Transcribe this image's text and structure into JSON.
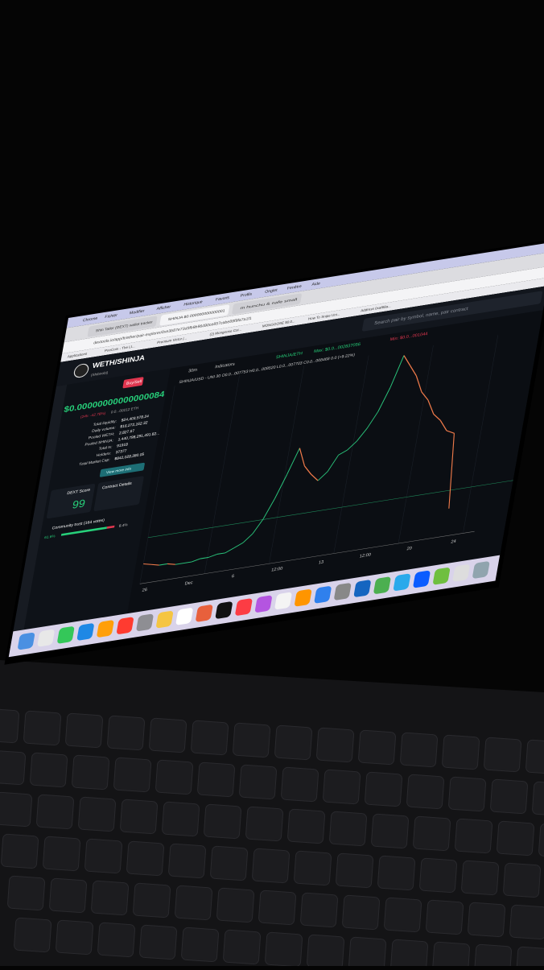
{
  "browser": {
    "menu": [
      "Chrome",
      "Fichier",
      "Modifier",
      "Afficher",
      "Historique",
      "Favoris",
      "Profils",
      "Onglet",
      "Fenêtre",
      "Aide"
    ],
    "tabs": [
      "Shin Tailer (DEXT) wallet tracker",
      "SHINJA $0.000000000000001",
      "m hunchu & nafe small"
    ],
    "address": "dextools.io/app/fr/ether/pair-explorer/0xe3b87e73d3fb9b96d90ce857cabe89f9fa7a1f1",
    "bookmarks": [
      "Applications",
      "PooCoin - The Lt...",
      "Premium Victor |...",
      "(2) Mongoose Coi...",
      "MONGOOSE $0.0...",
      "How To Snipe Uni...",
      "Address 0xaf68a..."
    ]
  },
  "header": {
    "pair": "WETH/SHINJA",
    "subtitle": "(Shibnobi)",
    "search": "Search pair by symbol, name, pair contract"
  },
  "panel": {
    "buy_sell": "Buy/Sell",
    "price": "$0.00000000000000084",
    "change": "(24h: -42.78%)",
    "price_eth": "0.0...00212 ETH",
    "stats": [
      [
        "Total liquidity:",
        "$24,403,578.24"
      ],
      [
        "Daily volume:",
        "$16,272,162.32"
      ],
      [
        "Pooled WETH:",
        "2,827.67"
      ],
      [
        "Pooled SHINJA:",
        "1,440,798,291,491.82..."
      ],
      [
        "Total tx:",
        "91918"
      ],
      [
        "Holders:",
        "37377"
      ],
      [
        "Total Market Cap:",
        "$842,028,380.05"
      ]
    ],
    "more_info": "View more info",
    "score_label": "DEXT Score",
    "score": 99,
    "contract": "Contract Details",
    "trust": "Community trust (164 votes)",
    "trust_good": "61.6%",
    "trust_bad": "8.4%"
  },
  "chart": {
    "interval": "30m",
    "indicators": "Indicators",
    "pair": "SHINJA/ETH",
    "max": "Max: $0.0...002837056",
    "min": "Min: $0.0...001044",
    "ohlc": "SHINJA/USD - UNI  30  O0.0...007753 H0.0...008520 L0.0...007703 C0.0...008468 0.0 (+9.22%)",
    "x_labels": [
      "26",
      "Dec",
      "6",
      "12:00",
      "13",
      "12:00",
      "20",
      "24"
    ],
    "values": [
      6,
      5,
      4,
      4,
      3,
      3,
      3,
      4,
      4,
      5,
      5,
      7,
      9,
      13,
      20,
      30,
      42,
      55,
      45,
      40,
      36,
      40,
      48,
      50,
      54,
      60,
      68,
      80,
      96,
      90,
      84,
      75,
      70,
      62,
      58,
      52,
      50,
      10
    ]
  }
}
